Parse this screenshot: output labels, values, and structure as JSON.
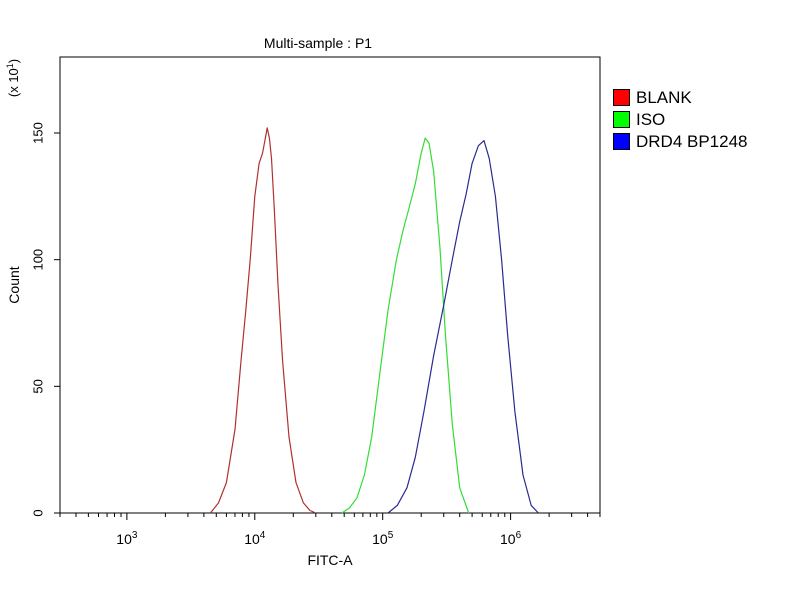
{
  "chart_data": {
    "type": "line",
    "title": "Multi-sample : P1",
    "xlabel": "FITC-A",
    "ylabel": "Count",
    "ylabel_multiplier": "(x 10",
    "ylabel_multiplier_exp": "1",
    "ylabel_multiplier_close": ")",
    "x_scale": "log",
    "xlim": [
      300,
      5000000
    ],
    "ylim": [
      0,
      180
    ],
    "grid": false,
    "legend_position": "right",
    "x_ticks": [
      {
        "base": "10",
        "exp": "3",
        "value": 1000
      },
      {
        "base": "10",
        "exp": "4",
        "value": 10000
      },
      {
        "base": "10",
        "exp": "5",
        "value": 100000
      },
      {
        "base": "10",
        "exp": "6",
        "value": 1000000
      }
    ],
    "y_ticks": [
      {
        "label": "0",
        "value": 0
      },
      {
        "label": "50",
        "value": 50
      },
      {
        "label": "100",
        "value": 100
      },
      {
        "label": "150",
        "value": 150
      }
    ],
    "series": [
      {
        "name": "BLANK",
        "color": "#ff0000",
        "stroke": "#b03030",
        "x": [
          4500,
          5200,
          6000,
          7000,
          7800,
          8500,
          9200,
          10000,
          10800,
          11500,
          12000,
          12500,
          13000,
          13500,
          14200,
          15200,
          16500,
          18500,
          21000,
          24000,
          27000,
          30000
        ],
        "y": [
          0,
          4,
          12,
          33,
          60,
          80,
          100,
          125,
          138,
          142,
          147,
          152,
          148,
          140,
          120,
          90,
          60,
          30,
          12,
          4,
          1,
          0
        ]
      },
      {
        "name": "ISO",
        "color": "#00ff00",
        "stroke": "#33dd33",
        "x": [
          48000,
          55000,
          63000,
          72000,
          82000,
          95000,
          110000,
          128000,
          145000,
          160000,
          180000,
          200000,
          215000,
          230000,
          250000,
          280000,
          310000,
          350000,
          400000,
          470000
        ],
        "y": [
          0,
          2,
          6,
          15,
          30,
          55,
          80,
          100,
          112,
          120,
          130,
          142,
          148,
          146,
          135,
          105,
          70,
          35,
          10,
          0
        ]
      },
      {
        "name": "DRD4 BP1248",
        "color": "#0000ff",
        "stroke": "#2a2a90",
        "x": [
          110000,
          130000,
          155000,
          180000,
          210000,
          250000,
          300000,
          350000,
          400000,
          450000,
          500000,
          560000,
          620000,
          680000,
          760000,
          850000,
          950000,
          1080000,
          1250000,
          1450000,
          1650000
        ],
        "y": [
          0,
          3,
          10,
          22,
          40,
          62,
          82,
          100,
          115,
          126,
          138,
          145,
          147,
          140,
          125,
          100,
          70,
          40,
          15,
          3,
          0
        ]
      }
    ]
  }
}
